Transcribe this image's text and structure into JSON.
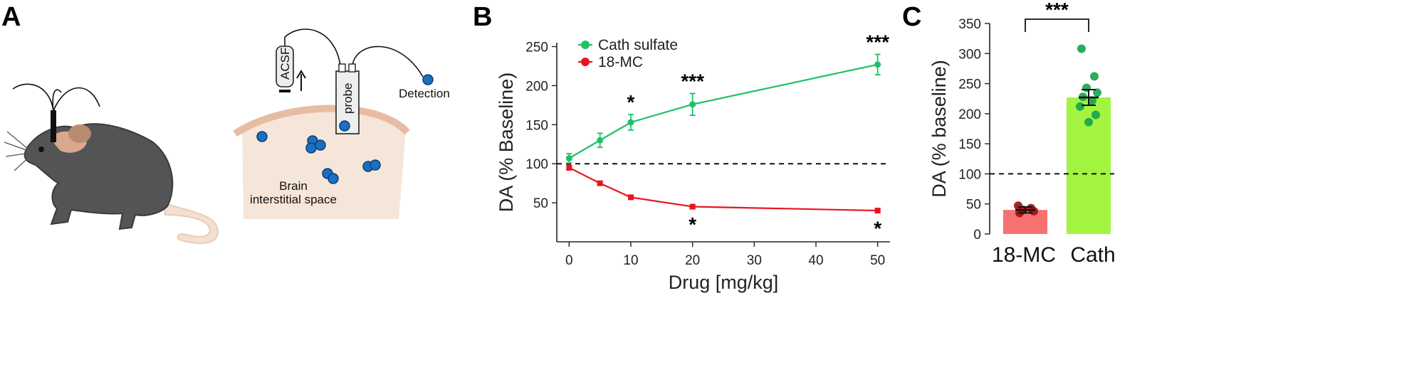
{
  "panels": {
    "a": "A",
    "b": "B",
    "c": "C"
  },
  "schematic": {
    "acsf": "ACSF",
    "probe": "probe",
    "detection": "Detection",
    "brain_line1": "Brain",
    "brain_line2": "interstitial space"
  },
  "chart_data": [
    {
      "type": "line",
      "x": [
        0,
        5,
        10,
        20,
        50
      ],
      "xlabel": "Drug [mg/kg]",
      "ylabel": "DA (% Baseline)",
      "xlim": [
        -2,
        52
      ],
      "ylim": [
        0,
        255
      ],
      "xticks": [
        "0",
        "10",
        "20",
        "30",
        "40",
        "50"
      ],
      "yticks": [
        "50",
        "100",
        "150",
        "200",
        "250"
      ],
      "reference_line": 100,
      "legend_position": "top-left",
      "series": [
        {
          "name": "Cath sulfate",
          "color": "#21c068",
          "values": [
            107,
            130,
            153,
            176,
            227
          ],
          "errors": [
            6,
            9,
            10,
            14,
            13
          ],
          "significance": [
            "",
            "",
            "*",
            "***",
            "***"
          ]
        },
        {
          "name": "18-MC",
          "color": "#e8141e",
          "values": [
            95,
            75,
            57,
            45,
            40
          ],
          "errors": [
            3,
            2,
            2,
            2,
            2
          ],
          "significance": [
            "",
            "",
            "",
            "*",
            "*"
          ]
        }
      ]
    },
    {
      "type": "bar",
      "categories": [
        "18-MC",
        "Cath"
      ],
      "values": [
        40,
        227
      ],
      "errors": [
        5,
        13
      ],
      "bar_colors": [
        "#f57172",
        "#a3f441"
      ],
      "point_colors": [
        "#9c0c10",
        "#14a24e"
      ],
      "points": [
        [
          47,
          43,
          40,
          38,
          35
        ],
        [
          308,
          262,
          243,
          235,
          228,
          222,
          212,
          198,
          186
        ]
      ],
      "ylabel": "DA (% baseline)",
      "ylim": [
        0,
        350
      ],
      "yticks": [
        "0",
        "50",
        "100",
        "150",
        "200",
        "250",
        "300",
        "350"
      ],
      "reference_line": 100,
      "significance": "***"
    }
  ]
}
